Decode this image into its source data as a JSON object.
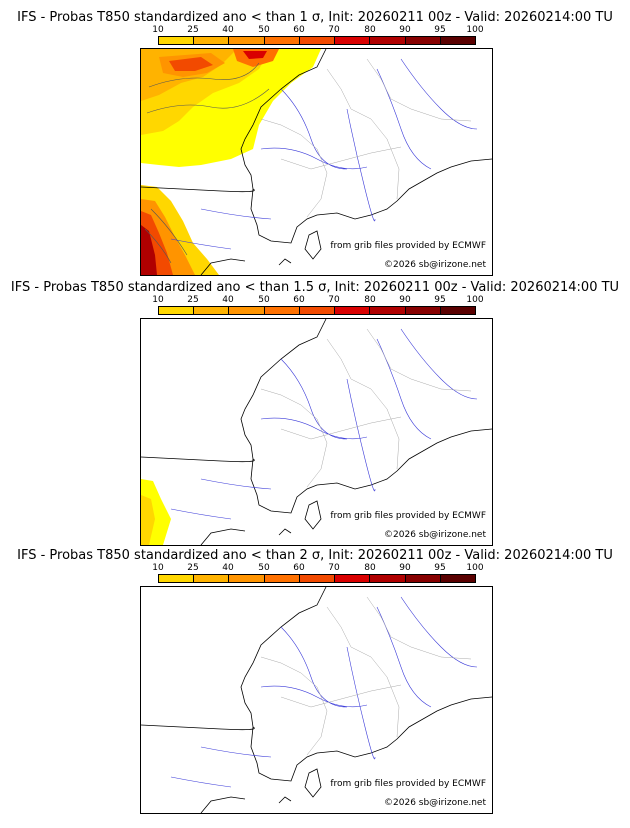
{
  "colorbar": {
    "ticks": [
      "10",
      "25",
      "40",
      "50",
      "60",
      "70",
      "80",
      "90",
      "95",
      "100"
    ],
    "colors": [
      "#ffff00",
      "#ffd700",
      "#ffb300",
      "#ff9400",
      "#ff7100",
      "#f24a00",
      "#d90000",
      "#b00000",
      "#870000",
      "#5a0000"
    ]
  },
  "panels": [
    {
      "title": "IFS - Probas T850  standardized ano < than 1 σ, Init: 20260211 00z - Valid: 20260214:00 TU",
      "provider_credit": "from grib files provided by ECMWF",
      "copyright": "©2026 sb@irizone.net"
    },
    {
      "title": "IFS - Probas T850  standardized ano < than 1.5 σ, Init: 20260211 00z - Valid: 20260214:00 TU",
      "provider_credit": "from grib files provided by ECMWF",
      "copyright": "©2026 sb@irizone.net"
    },
    {
      "title": "IFS - Probas T850  standardized ano < than 2 σ, Init: 20260211 00z - Valid: 20260214:00 TU",
      "provider_credit": "from grib files provided by ECMWF",
      "copyright": "©2026 sb@irizone.net"
    }
  ]
}
